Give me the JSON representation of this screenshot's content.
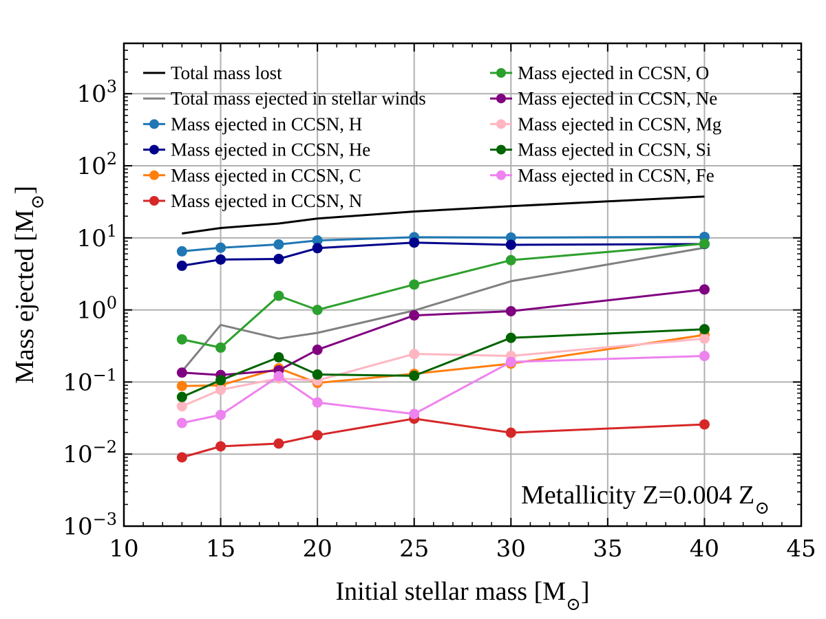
{
  "chart_data": {
    "type": "line",
    "xlabel": "Initial stellar mass [M",
    "xlabel_sub": "⊙",
    "xlabel_end": "]",
    "ylabel": "Mass ejected [M",
    "ylabel_sub": "⊙",
    "ylabel_end": "]",
    "xlim": [
      10,
      45
    ],
    "ylim": [
      0.001,
      5000
    ],
    "yscale": "log",
    "grid": true,
    "legend_location": "top-left, two columns",
    "xticks": [
      10,
      15,
      20,
      25,
      30,
      35,
      40,
      45
    ],
    "yticks": [
      {
        "value": 0.001,
        "base": "10",
        "exp": "−3"
      },
      {
        "value": 0.01,
        "base": "10",
        "exp": "−2"
      },
      {
        "value": 0.1,
        "base": "10",
        "exp": "−1"
      },
      {
        "value": 1,
        "base": "10",
        "exp": "0"
      },
      {
        "value": 10,
        "base": "10",
        "exp": "1"
      },
      {
        "value": 100,
        "base": "10",
        "exp": "2"
      },
      {
        "value": 1000,
        "base": "10",
        "exp": "3"
      }
    ],
    "annotation": {
      "text": "Metallicity Z=0.004 Z",
      "sub": "⊙"
    },
    "series": [
      {
        "name": "Total mass lost",
        "color": "#000000",
        "marker": false,
        "x": [
          13,
          15,
          18,
          20,
          25,
          30,
          40
        ],
        "y": [
          11.5,
          13.7,
          15.8,
          18.5,
          23.2,
          27.5,
          37.5
        ]
      },
      {
        "name": "Total mass ejected in stellar winds",
        "color": "#808080",
        "marker": false,
        "x": [
          13,
          15,
          18,
          20,
          25,
          30,
          40
        ],
        "y": [
          0.14,
          0.62,
          0.4,
          0.48,
          0.98,
          2.5,
          7.3
        ]
      },
      {
        "name": "Mass ejected in CCSN, H",
        "color": "#1f77b4",
        "marker": true,
        "x": [
          13,
          15,
          18,
          20,
          25,
          30,
          40
        ],
        "y": [
          6.5,
          7.3,
          8.1,
          9.2,
          10.2,
          10.1,
          10.3
        ]
      },
      {
        "name": "Mass ejected in CCSN, He",
        "color": "#00008b",
        "marker": true,
        "x": [
          13,
          15,
          18,
          20,
          25,
          30,
          40
        ],
        "y": [
          4.1,
          5.0,
          5.1,
          7.2,
          8.6,
          8.0,
          8.2
        ]
      },
      {
        "name": "Mass ejected in CCSN, C",
        "color": "#ff7f0e",
        "marker": true,
        "x": [
          13,
          15,
          18,
          20,
          25,
          30,
          40
        ],
        "y": [
          0.088,
          0.09,
          0.155,
          0.097,
          0.13,
          0.18,
          0.45
        ]
      },
      {
        "name": "Mass ejected in CCSN, N",
        "color": "#d62728",
        "marker": true,
        "x": [
          13,
          15,
          18,
          20,
          25,
          30,
          40
        ],
        "y": [
          0.009,
          0.0128,
          0.014,
          0.0183,
          0.031,
          0.0198,
          0.0258
        ]
      },
      {
        "name": "Mass ejected in CCSN, O",
        "color": "#2ca02c",
        "marker": true,
        "x": [
          13,
          15,
          18,
          20,
          25,
          30,
          40
        ],
        "y": [
          0.39,
          0.3,
          1.57,
          1.0,
          2.25,
          4.9,
          8.3
        ]
      },
      {
        "name": "Mass ejected in CCSN, Ne",
        "color": "#800080",
        "marker": true,
        "x": [
          13,
          15,
          18,
          20,
          25,
          30,
          40
        ],
        "y": [
          0.135,
          0.125,
          0.145,
          0.28,
          0.84,
          0.96,
          1.92
        ]
      },
      {
        "name": "Mass ejected in CCSN, Mg",
        "color": "#ffb6c1",
        "marker": true,
        "x": [
          13,
          15,
          18,
          20,
          25,
          30,
          40
        ],
        "y": [
          0.046,
          0.078,
          0.112,
          0.105,
          0.245,
          0.23,
          0.4
        ]
      },
      {
        "name": "Mass ejected in CCSN, Si",
        "color": "#006400",
        "marker": true,
        "x": [
          13,
          15,
          18,
          20,
          25,
          30,
          40
        ],
        "y": [
          0.062,
          0.106,
          0.22,
          0.127,
          0.122,
          0.41,
          0.54
        ]
      },
      {
        "name": "Mass ejected in CCSN, Fe",
        "color": "#ee82ee",
        "marker": true,
        "x": [
          13,
          15,
          18,
          20,
          25,
          30,
          40
        ],
        "y": [
          0.027,
          0.035,
          0.12,
          0.052,
          0.036,
          0.19,
          0.23
        ]
      }
    ]
  }
}
